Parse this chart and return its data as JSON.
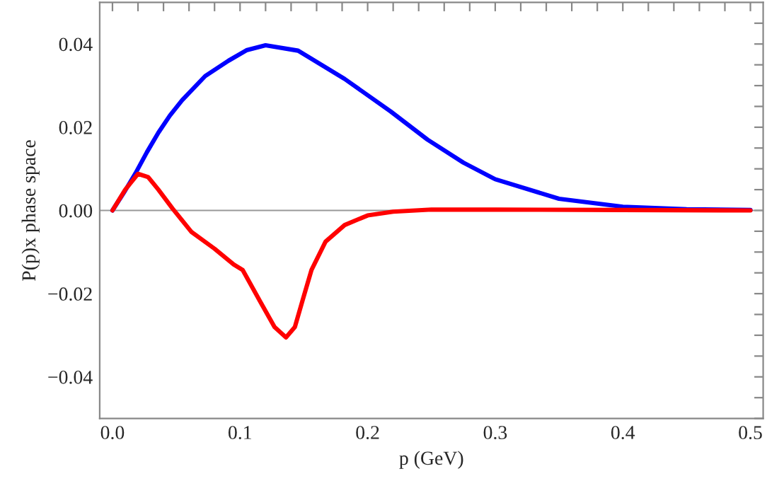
{
  "chart_data": {
    "type": "line",
    "xlabel": "p (GeV)",
    "ylabel": "P(p)x phase space",
    "x": [
      0,
      0.01,
      0.018,
      0.027,
      0.036,
      0.045,
      0.0546,
      0.0727,
      0.091,
      0.105,
      0.12,
      0.1455,
      0.182,
      0.218,
      0.247,
      0.275,
      0.3,
      0.35,
      0.4,
      0.45,
      0.5
    ],
    "series": [
      {
        "color": "#0000ff",
        "values": [
          0,
          0.0048,
          0.0089,
          0.014,
          0.0187,
          0.0228,
          0.0265,
          0.0323,
          0.036,
          0.0385,
          0.0397,
          0.0384,
          0.0316,
          0.0238,
          0.017,
          0.0115,
          0.0075,
          0.0028,
          0.0009,
          0.0003,
          0.0001
        ]
      },
      {
        "color": "#ff0000",
        "x": [
          0,
          0.01,
          0.02,
          0.028,
          0.036,
          0.047,
          0.062,
          0.08,
          0.095,
          0.102,
          0.116,
          0.127,
          0.136,
          0.143,
          0.149,
          0.156,
          0.167,
          0.182,
          0.2,
          0.22,
          0.25,
          0.3,
          0.4,
          0.5
        ],
        "values": [
          0,
          0.005,
          0.0088,
          0.008,
          0.005,
          0.0005,
          -0.0052,
          -0.0092,
          -0.013,
          -0.0143,
          -0.022,
          -0.028,
          -0.0305,
          -0.028,
          -0.0216,
          -0.0143,
          -0.0075,
          -0.0035,
          -0.0012,
          -0.0003,
          0.0002,
          0.0002,
          0.0001,
          0
        ]
      }
    ],
    "xlim": [
      -0.01,
      0.51
    ],
    "ylim": [
      -0.05,
      0.05
    ],
    "xticks": [
      {
        "value": 0,
        "label": "0.0"
      },
      {
        "value": 0.02,
        "label": null
      },
      {
        "value": 0.04,
        "label": null
      },
      {
        "value": 0.06,
        "label": null
      },
      {
        "value": 0.08,
        "label": null
      },
      {
        "value": 0.1,
        "label": "0.1"
      },
      {
        "value": 0.12,
        "label": null
      },
      {
        "value": 0.14,
        "label": null
      },
      {
        "value": 0.16,
        "label": null
      },
      {
        "value": 0.18,
        "label": null
      },
      {
        "value": 0.2,
        "label": "0.2"
      },
      {
        "value": 0.22,
        "label": null
      },
      {
        "value": 0.24,
        "label": null
      },
      {
        "value": 0.26,
        "label": null
      },
      {
        "value": 0.28,
        "label": null
      },
      {
        "value": 0.3,
        "label": "0.3"
      },
      {
        "value": 0.32,
        "label": null
      },
      {
        "value": 0.34,
        "label": null
      },
      {
        "value": 0.36,
        "label": null
      },
      {
        "value": 0.38,
        "label": null
      },
      {
        "value": 0.4,
        "label": "0.4"
      },
      {
        "value": 0.42,
        "label": null
      },
      {
        "value": 0.44,
        "label": null
      },
      {
        "value": 0.46,
        "label": null
      },
      {
        "value": 0.48,
        "label": null
      },
      {
        "value": 0.5,
        "label": "0.5"
      }
    ],
    "yticks": [
      {
        "value": -0.05,
        "label": null
      },
      {
        "value": -0.045,
        "label": null
      },
      {
        "value": -0.04,
        "label": "−0.04"
      },
      {
        "value": -0.035,
        "label": null
      },
      {
        "value": -0.03,
        "label": null
      },
      {
        "value": -0.025,
        "label": null
      },
      {
        "value": -0.02,
        "label": "−0.02"
      },
      {
        "value": -0.015,
        "label": null
      },
      {
        "value": -0.01,
        "label": null
      },
      {
        "value": -0.005,
        "label": null
      },
      {
        "value": 0,
        "label": "0.00"
      },
      {
        "value": 0.005,
        "label": null
      },
      {
        "value": 0.01,
        "label": null
      },
      {
        "value": 0.015,
        "label": null
      },
      {
        "value": 0.02,
        "label": "0.02"
      },
      {
        "value": 0.025,
        "label": null
      },
      {
        "value": 0.03,
        "label": null
      },
      {
        "value": 0.035,
        "label": null
      },
      {
        "value": 0.04,
        "label": "0.04"
      },
      {
        "value": 0.045,
        "label": null
      }
    ],
    "ref_lines": [
      {
        "axis": "y",
        "value": 0,
        "color": "#999999"
      }
    ],
    "grid": false,
    "legend": false,
    "marker": "none",
    "line_style": "solid"
  }
}
